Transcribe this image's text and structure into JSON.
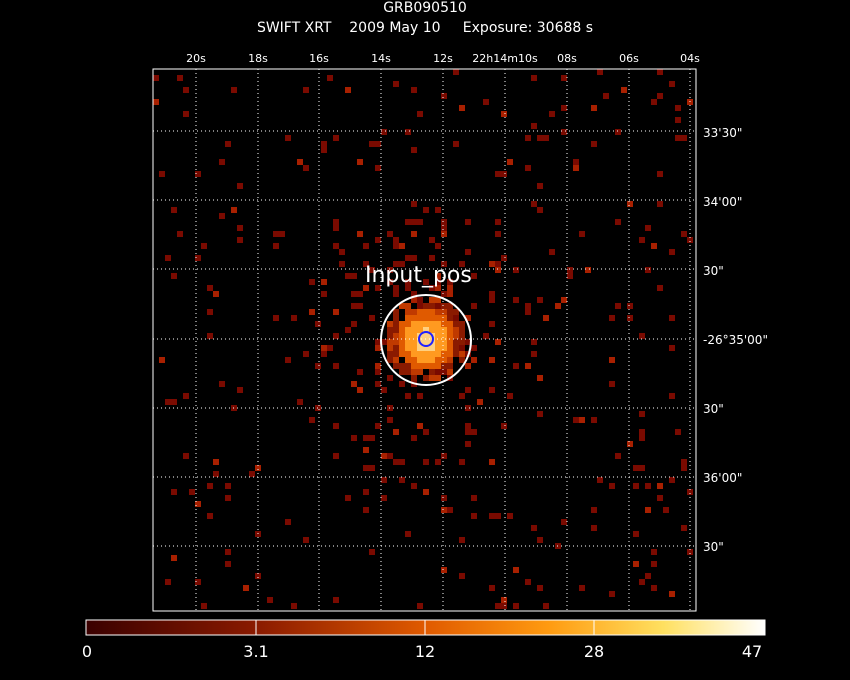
{
  "header": {
    "object_name": "GRB090510",
    "subtitle": "SWIFT XRT    2009 May 10     Exposure: 30688 s"
  },
  "image": {
    "marker_label": "Input_pos",
    "colors": {
      "background": "#000000",
      "grid": "#ffffff",
      "marker_outer": "#ffffff",
      "marker_inner": "#2020ff"
    }
  },
  "axes": {
    "top_ticks": [
      "20s",
      "18s",
      "16s",
      "14s",
      "12s",
      "22h14m10s",
      "08s",
      "06s",
      "04s"
    ],
    "right_ticks": [
      "33'30\"",
      "34'00\"",
      "30\"",
      "-26°35'00\"",
      "30\"",
      "36'00\"",
      "30\""
    ]
  },
  "colorbar": {
    "labels": [
      "0",
      "3.1",
      "12",
      "28",
      "47"
    ]
  }
}
